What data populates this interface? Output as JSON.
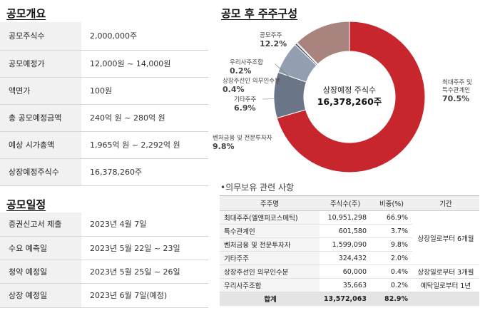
{
  "offering": {
    "title": "공모개요",
    "rows": [
      {
        "label": "공모주식수",
        "value": "2,000,000주"
      },
      {
        "label": "공모예정가",
        "value": "12,000원 ~ 14,000원"
      },
      {
        "label": "액면가",
        "value": "100원"
      },
      {
        "label": "총 공모예정금액",
        "value": "240억 원 ~ 280억 원"
      },
      {
        "label": "예상 시가총액",
        "value": "1,965억 원 ~ 2,292억 원"
      },
      {
        "label": "상장예정주식수",
        "value": "16,378,260주"
      }
    ]
  },
  "schedule": {
    "title": "공모일정",
    "rows": [
      {
        "label": "증권신고서 제출",
        "value": "2023년 4월 7일"
      },
      {
        "label": "수요 예측일",
        "value": "2023년 5월 22일 ~ 23일"
      },
      {
        "label": "청약 예정일",
        "value": "2023년 5월 25일 ~ 26일"
      },
      {
        "label": "상장 예정일",
        "value": "2023년 6월 7일(예정)"
      }
    ]
  },
  "chart": {
    "title": "공모 후 주주구성",
    "center_label": "상장예정 주식수",
    "center_value": "16,378,260주"
  },
  "chart_data": {
    "type": "pie",
    "title": "공모 후 주주구성",
    "categories": [
      "최대주주 및 특수관계인",
      "벤처금융 및 전문투자자",
      "기타주주",
      "상장주선인 의무인수분",
      "우리사주조합",
      "공모주주"
    ],
    "values": [
      70.5,
      9.8,
      6.9,
      0.4,
      0.2,
      12.2
    ],
    "colors": [
      "#c8262d",
      "#6b7588",
      "#949eb1",
      "#2f3e5c",
      "#5a5a5a",
      "#a9837e"
    ],
    "labels": [
      {
        "line1": "최대주주 및",
        "line2": "특수관계인",
        "pct": "70.5%"
      },
      {
        "line1": "벤처금융 및 전문투자자",
        "line2": "",
        "pct": "9.8%"
      },
      {
        "line1": "기타주주",
        "line2": "",
        "pct": "6.9%"
      },
      {
        "line1": "상장주선인 의무인수분",
        "line2": "",
        "pct": "0.4%"
      },
      {
        "line1": "우리사주조합",
        "line2": "",
        "pct": "0.2%"
      },
      {
        "line1": "공모주주",
        "line2": "",
        "pct": "12.2%"
      }
    ]
  },
  "lockup": {
    "title": "•의무보유 관련 사항",
    "headers": [
      "주주명",
      "주식수(주)",
      "비중(%)",
      "기간"
    ],
    "rows": [
      {
        "name": "최대주주(엘앤피코스메틱)",
        "shares": "10,951,298",
        "pct": "66.9%"
      },
      {
        "name": "특수관계인",
        "shares": "601,580",
        "pct": "3.7%"
      },
      {
        "name": "벤처금융 및 전문투자자",
        "shares": "1,599,090",
        "pct": "9.8%"
      },
      {
        "name": "기타주주",
        "shares": "324,432",
        "pct": "2.0%"
      },
      {
        "name": "상장주선인 의무인수분",
        "shares": "60,000",
        "pct": "0.4%"
      },
      {
        "name": "우리사주조합",
        "shares": "35,663",
        "pct": "0.2%"
      }
    ],
    "periods": [
      "상장일로부터 6개월",
      "상장일로부터 3개월",
      "예탁일로부터 1년"
    ],
    "total": {
      "name": "합계",
      "shares": "13,572,063",
      "pct": "82.9%"
    }
  }
}
